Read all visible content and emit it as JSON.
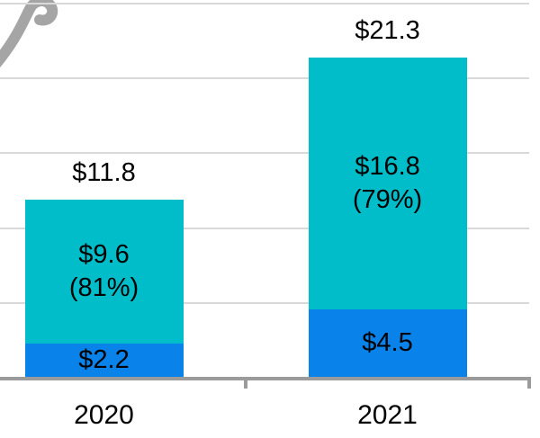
{
  "chart_data": {
    "type": "bar",
    "stacked": true,
    "title": "",
    "xlabel": "",
    "ylabel": "",
    "categories": [
      "2020",
      "2021"
    ],
    "series": [
      {
        "name": "blue-bottom-segment",
        "color": "#0982E9",
        "values": [
          2.2,
          4.5
        ],
        "data_labels": [
          [
            "$2.2"
          ],
          [
            "$4.5"
          ]
        ]
      },
      {
        "name": "teal-top-segment",
        "color": "#00BEC9",
        "values": [
          9.6,
          16.8
        ],
        "data_labels": [
          [
            "$9.6",
            "(81%)"
          ],
          [
            "$16.8",
            "(79%)"
          ]
        ]
      }
    ],
    "totals": {
      "values": [
        11.8,
        21.3
      ],
      "labels": [
        "$11.8",
        "$21.3"
      ]
    },
    "ylim": [
      0,
      25
    ],
    "grid": {
      "visible": true,
      "step": 5,
      "color": "#D9D9D9"
    },
    "x_axis": {
      "line_color": "#9B9B9B",
      "tick_color": "#9B9B9B",
      "label_color": "#000000"
    },
    "legend": {
      "visible": false
    }
  },
  "decorations": {
    "watermark_glyph": "gray-cropped-letter-fragment",
    "watermark_color": "#8E8E8E"
  }
}
